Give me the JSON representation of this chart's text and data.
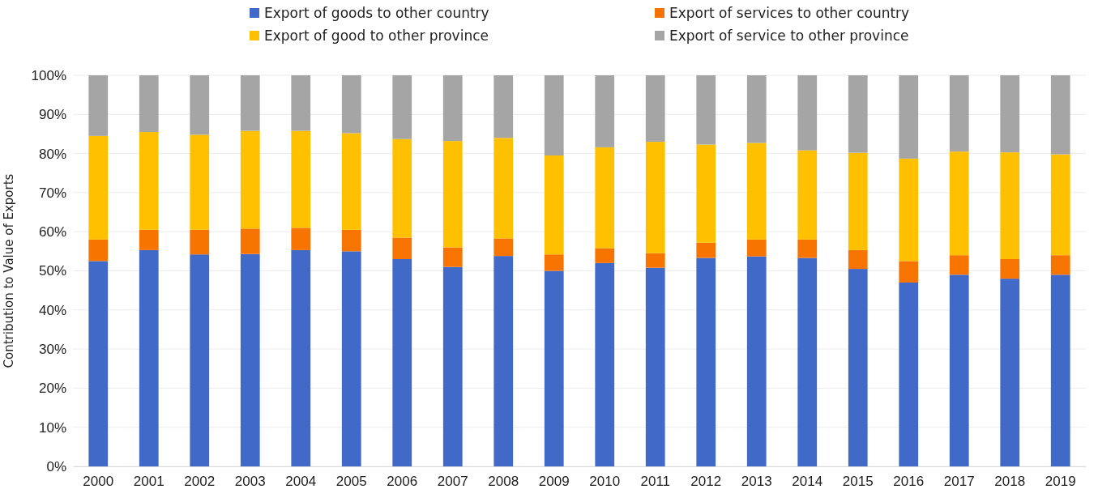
{
  "chart_data": {
    "type": "bar",
    "stacked": true,
    "ylabel": "Contribution to Value of Exports",
    "categories": [
      "2000",
      "2001",
      "2002",
      "2003",
      "2004",
      "2005",
      "2006",
      "2007",
      "2008",
      "2009",
      "2010",
      "2011",
      "2012",
      "2013",
      "2014",
      "2015",
      "2016",
      "2017",
      "2018",
      "2019"
    ],
    "series": [
      {
        "name": "Export of goods to other country",
        "color": "#4169c8",
        "values": [
          52.5,
          55.3,
          54.2,
          54.3,
          55.3,
          55,
          53,
          51,
          53.8,
          50,
          52,
          50.8,
          53.3,
          53.7,
          53.3,
          50.5,
          47,
          49,
          48,
          49
        ]
      },
      {
        "name": "Export of services to other country",
        "color": "#f77400",
        "values": [
          5.5,
          5.2,
          6.3,
          6.5,
          5.7,
          5.5,
          5.5,
          5,
          4.5,
          4.2,
          3.8,
          3.7,
          3.9,
          4.3,
          4.7,
          4.8,
          5.5,
          5,
          5,
          5
        ]
      },
      {
        "name": "Export of good to other province",
        "color": "#ffc000",
        "values": [
          26.5,
          25,
          24.3,
          25,
          24.8,
          24.7,
          25.2,
          27.2,
          25.7,
          25.3,
          25.8,
          28.5,
          25.1,
          24.7,
          22.8,
          24.9,
          26.2,
          26.5,
          27.3,
          25.8
        ]
      },
      {
        "name": "Export of service to other province",
        "color": "#a5a5a5",
        "values": [
          15.5,
          14.5,
          15.2,
          14.2,
          14.2,
          14.8,
          16.3,
          16.8,
          16,
          20.5,
          18.4,
          17,
          17.7,
          17.3,
          19.2,
          19.8,
          21.3,
          19.5,
          19.7,
          20.2
        ]
      }
    ],
    "ylim": [
      0,
      100
    ],
    "yticks": [
      {
        "value": 0,
        "label": "0%"
      },
      {
        "value": 10,
        "label": "10%"
      },
      {
        "value": 20,
        "label": "20%"
      },
      {
        "value": 30,
        "label": "30%"
      },
      {
        "value": 40,
        "label": "40%"
      },
      {
        "value": 50,
        "label": "50%"
      },
      {
        "value": 60,
        "label": "60%"
      },
      {
        "value": 70,
        "label": "70%"
      },
      {
        "value": 80,
        "label": "80%"
      },
      {
        "value": 90,
        "label": "90%"
      },
      {
        "value": 100,
        "label": "100%"
      }
    ],
    "grid": "y",
    "legend": "top"
  }
}
